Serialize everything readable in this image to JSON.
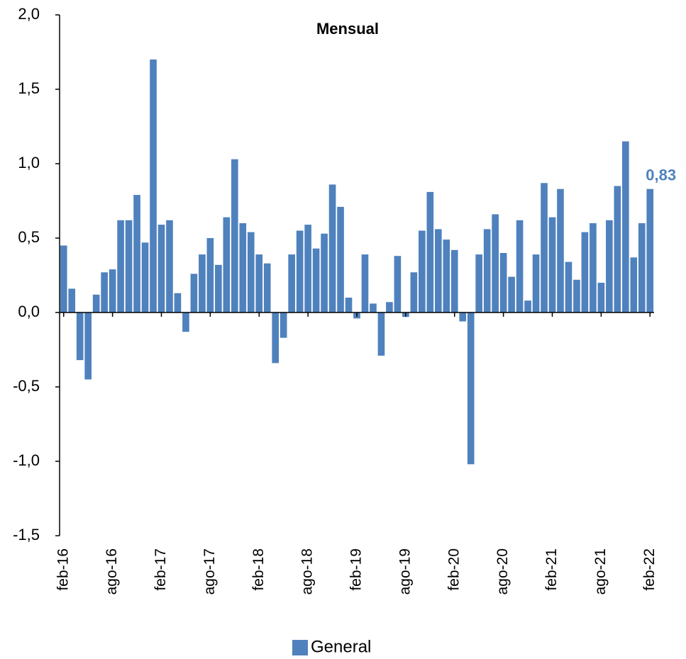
{
  "chart_data": {
    "type": "bar",
    "title": "Mensual",
    "categories": [
      "feb-16",
      null,
      null,
      null,
      null,
      null,
      "ago-16",
      null,
      null,
      null,
      null,
      null,
      "feb-17",
      null,
      null,
      null,
      null,
      null,
      "ago-17",
      null,
      null,
      null,
      null,
      null,
      "feb-18",
      null,
      null,
      null,
      null,
      null,
      "ago-18",
      null,
      null,
      null,
      null,
      null,
      "feb-19",
      null,
      null,
      null,
      null,
      null,
      "ago-19",
      null,
      null,
      null,
      null,
      null,
      "feb-20",
      null,
      null,
      null,
      null,
      null,
      "ago-20",
      null,
      null,
      null,
      null,
      null,
      "feb-21",
      null,
      null,
      null,
      null,
      null,
      "ago-21",
      null,
      null,
      null,
      null,
      null,
      "feb-22"
    ],
    "series": [
      {
        "name": "General",
        "color": "#4f81bd",
        "values": [
          0.45,
          0.16,
          -0.32,
          -0.45,
          0.12,
          0.27,
          0.29,
          0.62,
          0.62,
          0.79,
          0.47,
          1.7,
          0.59,
          0.62,
          0.13,
          -0.13,
          0.26,
          0.39,
          0.5,
          0.32,
          0.64,
          1.03,
          0.6,
          0.54,
          0.39,
          0.33,
          -0.34,
          -0.17,
          0.39,
          0.55,
          0.59,
          0.43,
          0.53,
          0.86,
          0.71,
          0.1,
          -0.04,
          0.39,
          0.06,
          -0.29,
          0.07,
          0.38,
          -0.03,
          0.27,
          0.55,
          0.81,
          0.56,
          0.49,
          0.42,
          -0.06,
          -1.02,
          0.39,
          0.56,
          0.66,
          0.4,
          0.24,
          0.62,
          0.08,
          0.39,
          0.87,
          0.64,
          0.83,
          0.34,
          0.22,
          0.54,
          0.6,
          0.2,
          0.62,
          0.85,
          1.15,
          0.37,
          0.6,
          0.83
        ],
        "value_labels": [
          null,
          null,
          null,
          null,
          null,
          null,
          null,
          null,
          null,
          null,
          null,
          null,
          null,
          null,
          null,
          null,
          null,
          null,
          null,
          null,
          null,
          null,
          null,
          null,
          null,
          null,
          null,
          null,
          null,
          null,
          null,
          null,
          null,
          null,
          null,
          null,
          null,
          null,
          null,
          null,
          null,
          null,
          null,
          null,
          null,
          null,
          null,
          null,
          null,
          null,
          null,
          null,
          null,
          null,
          null,
          null,
          null,
          null,
          null,
          null,
          null,
          null,
          null,
          null,
          null,
          null,
          null,
          null,
          null,
          null,
          null,
          null,
          "0,83"
        ]
      }
    ],
    "ylim": [
      -1.5,
      2.0
    ],
    "yticks": [
      {
        "value": -1.5,
        "label": "-1,5"
      },
      {
        "value": -1.0,
        "label": "-1,0"
      },
      {
        "value": -0.5,
        "label": "-0,5"
      },
      {
        "value": 0,
        "label": "0,0"
      },
      {
        "value": 0.5,
        "label": "0,5"
      },
      {
        "value": 1.0,
        "label": "1,0"
      },
      {
        "value": 1.5,
        "label": "1,5"
      },
      {
        "value": 2.0,
        "label": "2,0"
      }
    ],
    "legend": "bottom"
  }
}
